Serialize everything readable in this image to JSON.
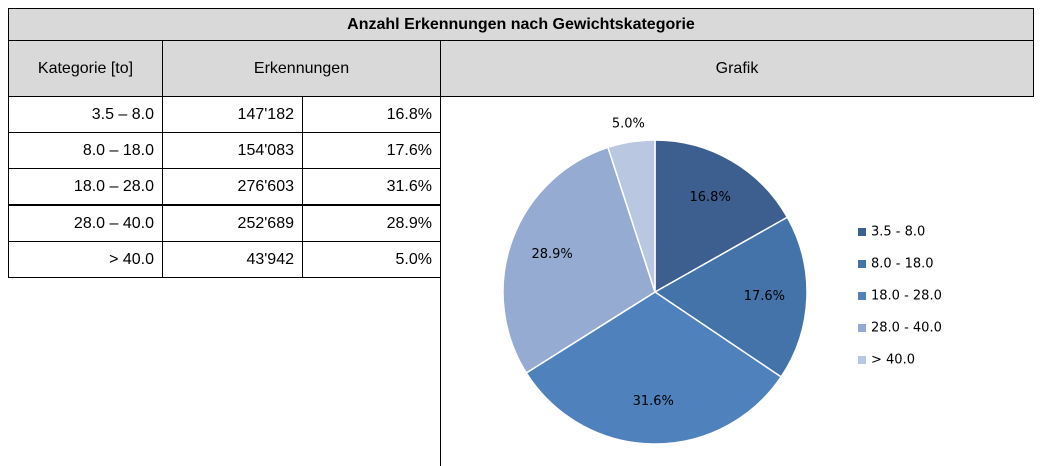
{
  "title": "Anzahl Erkennungen nach Gewichtskategorie",
  "table": {
    "headers": [
      "Kategorie [to]",
      "Erkennungen",
      "Grafik"
    ],
    "rows": [
      [
        "3.5 – 8.0",
        "147'182",
        "16.8%"
      ],
      [
        "8.0 – 18.0",
        "154'083",
        "17.6%"
      ],
      [
        "18.0 – 28.0",
        "276'603",
        "31.6%"
      ],
      [
        "28.0 – 40.0",
        "252'689",
        "28.9%"
      ],
      [
        "> 40.0",
        "43'942",
        "5.0%"
      ]
    ]
  },
  "chart_data": {
    "type": "pie",
    "categories": [
      "3.5 - 8.0",
      "8.0 - 18.0",
      "18.0 - 28.0",
      "28.0 - 40.0",
      "> 40.0"
    ],
    "values": [
      16.8,
      17.6,
      31.6,
      28.9,
      5.0
    ],
    "value_labels": [
      "16.8%",
      "17.6%",
      "31.6%",
      "28.9%",
      "5.0%"
    ],
    "colors": [
      "#3c5f8f",
      "#4473a9",
      "#4f81bd",
      "#95abd2",
      "#b9c7e1"
    ],
    "legend": "right"
  }
}
